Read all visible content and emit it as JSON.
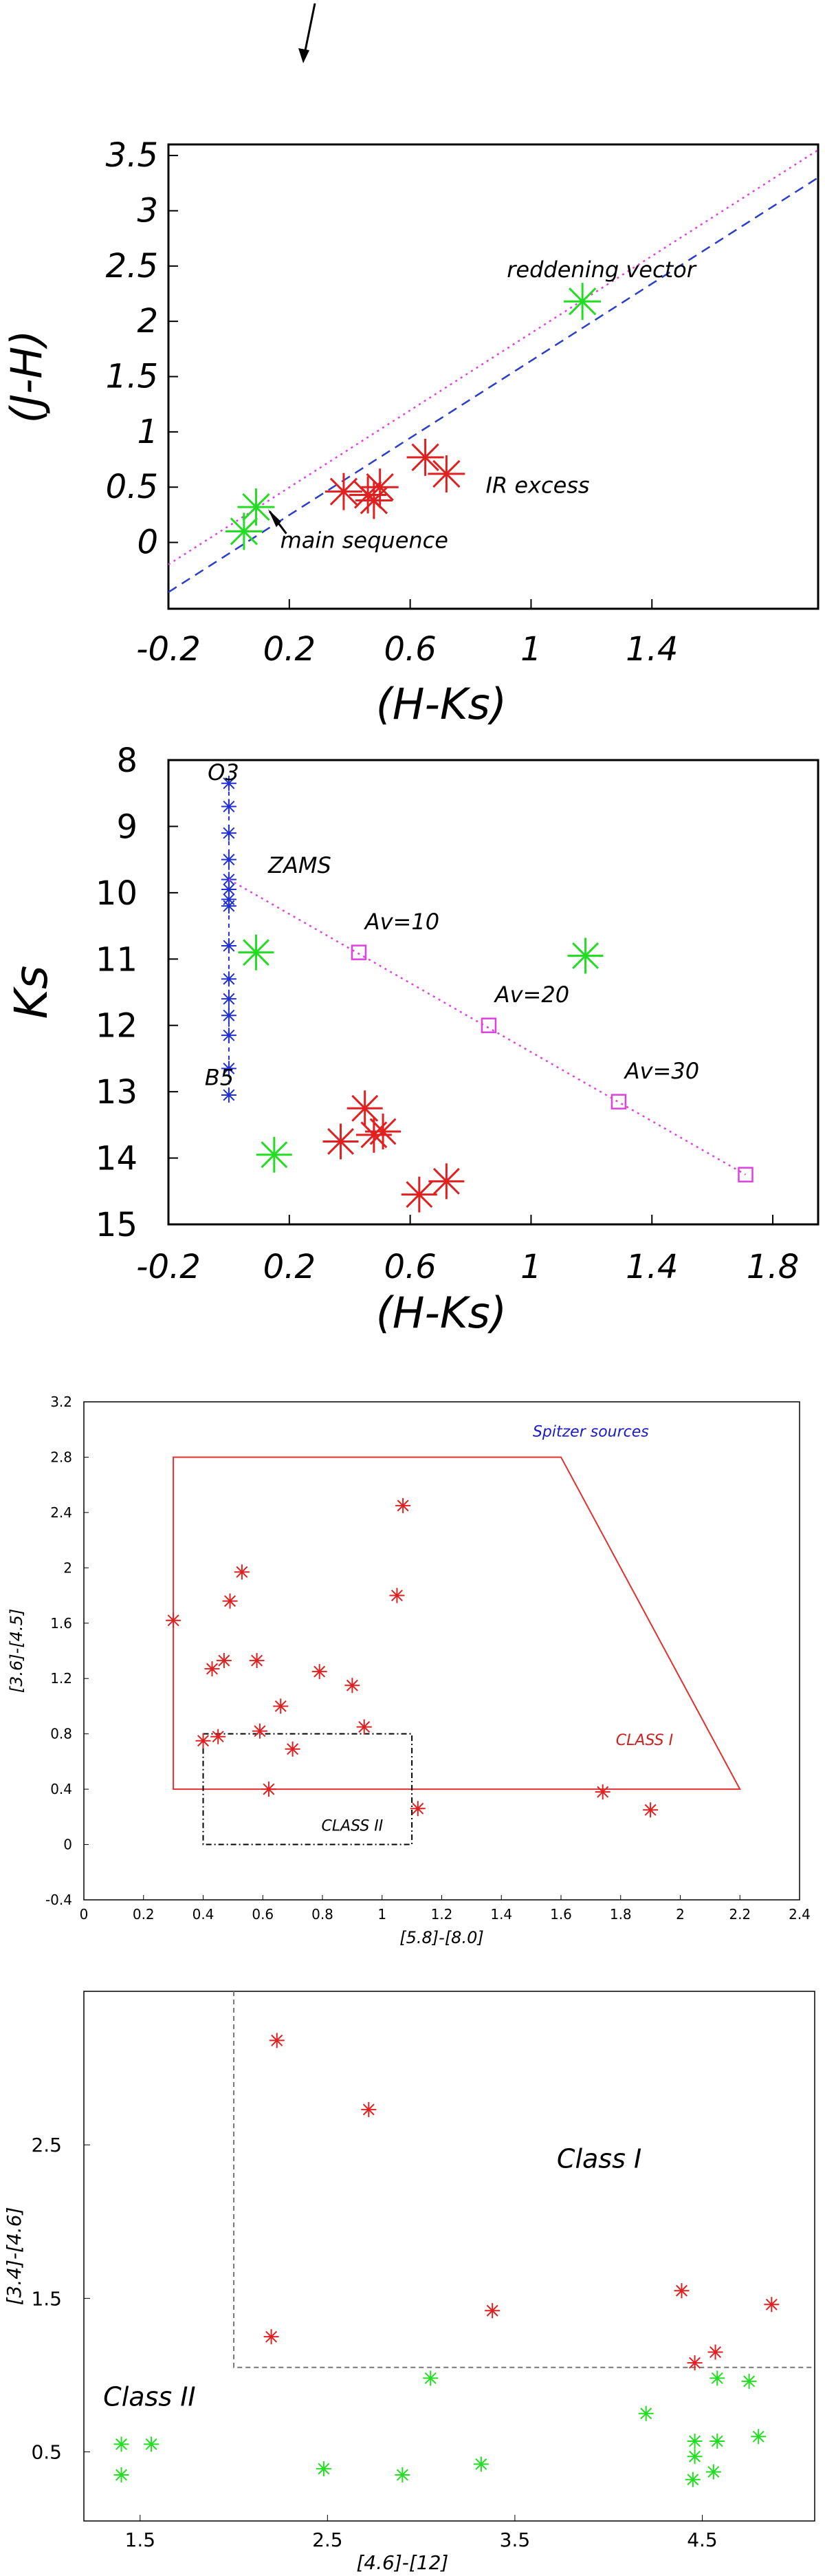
{
  "chart_data": [
    {
      "type": "scatter",
      "title": "",
      "xlabel": "(H-Ks)",
      "ylabel": "(J-H)",
      "xlim": [
        -0.2,
        1.95
      ],
      "ylim": [
        -0.6,
        3.6
      ],
      "xticks": [
        -0.2,
        0.2,
        0.6,
        1,
        1.4
      ],
      "yticks": [
        0,
        0.5,
        1,
        1.5,
        2,
        2.5,
        3,
        3.5
      ],
      "grid": false,
      "lines": [
        {
          "style": "dotted",
          "color": "#e040e0",
          "points": [
            [
              -0.2,
              -0.2
            ],
            [
              1.95,
              3.55
            ]
          ]
        },
        {
          "style": "dashed",
          "color": "#2a3fc9",
          "points": [
            [
              -0.2,
              -0.45
            ],
            [
              1.95,
              3.3
            ]
          ]
        }
      ],
      "series": [
        {
          "color": "#22dd22",
          "points": [
            [
              0.05,
              0.1
            ],
            [
              0.09,
              0.32
            ],
            [
              1.17,
              2.18
            ]
          ]
        },
        {
          "color": "#e02020",
          "points": [
            [
              0.38,
              0.46
            ],
            [
              0.46,
              0.43
            ],
            [
              0.48,
              0.38
            ],
            [
              0.5,
              0.5
            ],
            [
              0.65,
              0.77
            ],
            [
              0.72,
              0.62
            ]
          ]
        }
      ],
      "annotations": [
        {
          "text": "reddening vector",
          "x": 0.92,
          "y": 2.4
        },
        {
          "text": "IR excess",
          "x": 0.85,
          "y": 0.45
        },
        {
          "text": "main sequence",
          "x": 0.17,
          "y": -0.05
        }
      ]
    },
    {
      "type": "scatter",
      "title": "",
      "xlabel": "(H-Ks)",
      "ylabel": "Ks",
      "xlim": [
        -0.2,
        1.95
      ],
      "ylim": [
        15,
        8
      ],
      "xticks": [
        -0.2,
        0.2,
        0.6,
        1,
        1.4,
        1.8
      ],
      "yticks": [
        8,
        9,
        10,
        11,
        12,
        13,
        14,
        15
      ],
      "grid": false,
      "zams": {
        "color": "#2030d0",
        "x": 0.0,
        "ks": [
          8.35,
          8.7,
          9.1,
          9.5,
          9.8,
          9.95,
          10.1,
          10.2,
          10.8,
          11.3,
          11.6,
          11.85,
          12.15,
          12.65,
          13.05
        ]
      },
      "reddening_line": {
        "style": "dotted",
        "color": "#e040e0",
        "points": [
          [
            0.0,
            9.8
          ],
          [
            1.71,
            14.25
          ]
        ],
        "markers": [
          [
            0.43,
            10.9
          ],
          [
            0.86,
            12.0
          ],
          [
            1.29,
            13.15
          ],
          [
            1.71,
            14.25
          ]
        ]
      },
      "series": [
        {
          "color": "#22dd22",
          "points": [
            [
              0.09,
              10.9
            ],
            [
              0.15,
              13.95
            ],
            [
              1.18,
              10.95
            ]
          ]
        },
        {
          "color": "#e02020",
          "points": [
            [
              0.37,
              13.75
            ],
            [
              0.45,
              13.25
            ],
            [
              0.48,
              13.65
            ],
            [
              0.51,
              13.6
            ],
            [
              0.63,
              14.55
            ],
            [
              0.72,
              14.35
            ]
          ]
        }
      ],
      "annotations": [
        {
          "text": "O3",
          "x": -0.07,
          "y": 8.3
        },
        {
          "text": "ZAMS",
          "x": 0.13,
          "y": 9.7
        },
        {
          "text": "B5",
          "x": -0.08,
          "y": 12.9
        },
        {
          "text": "Av=10",
          "x": 0.45,
          "y": 10.55
        },
        {
          "text": "Av=20",
          "x": 0.88,
          "y": 11.65
        },
        {
          "text": "Av=30",
          "x": 1.31,
          "y": 12.8
        }
      ]
    },
    {
      "type": "scatter",
      "title": "",
      "xlabel": "[5.8]-[8.0]",
      "ylabel": "[3.6]-[4.5]",
      "xlim": [
        0,
        2.4
      ],
      "ylim": [
        -0.4,
        3.2
      ],
      "xticks": [
        "0",
        "0.2",
        "0.4",
        "0.6",
        "0.8",
        "1",
        "1.2",
        "1.4",
        "1.6",
        "1.8",
        "2",
        "2.2",
        "2.4"
      ],
      "yticks": [
        "-0.4",
        "0",
        "0.4",
        "0.8",
        "1.2",
        "1.6",
        "2",
        "2.4",
        "2.8",
        "3.2"
      ],
      "grid": false,
      "class_i_region": [
        [
          0.3,
          0.4
        ],
        [
          0.3,
          2.8
        ],
        [
          1.6,
          2.8
        ],
        [
          2.2,
          0.4
        ]
      ],
      "class_ii_region": [
        [
          0.4,
          0.0
        ],
        [
          1.1,
          0.8
        ]
      ],
      "series": [
        {
          "color": "#e02020",
          "points": [
            [
              0.3,
              1.62
            ],
            [
              0.4,
              0.75
            ],
            [
              0.43,
              1.27
            ],
            [
              0.45,
              0.78
            ],
            [
              0.47,
              1.33
            ],
            [
              0.49,
              1.76
            ],
            [
              0.53,
              1.97
            ],
            [
              0.58,
              1.33
            ],
            [
              0.59,
              0.82
            ],
            [
              0.62,
              0.4
            ],
            [
              0.66,
              1.0
            ],
            [
              0.7,
              0.69
            ],
            [
              0.79,
              1.25
            ],
            [
              0.9,
              1.15
            ],
            [
              0.94,
              0.85
            ],
            [
              1.05,
              1.8
            ],
            [
              1.07,
              2.45
            ],
            [
              1.12,
              0.26
            ],
            [
              1.74,
              0.38
            ],
            [
              1.9,
              0.25
            ]
          ]
        }
      ],
      "annotations": [
        {
          "text": "Spitzer sources",
          "x": 1.7,
          "y": 2.95,
          "color": "#1a1ad0"
        },
        {
          "text": "CLASS I",
          "x": 1.88,
          "y": 0.72,
          "color": "#d02020"
        },
        {
          "text": "CLASS II",
          "x": 0.9,
          "y": 0.1,
          "color": "#000000"
        }
      ]
    },
    {
      "type": "scatter",
      "title": "",
      "xlabel": "[4.6]-[12]",
      "ylabel": "[3.4]-[4.6]",
      "xlim": [
        1.2,
        5.1
      ],
      "ylim": [
        0.05,
        3.5
      ],
      "xticks": [
        "1.5",
        "2.5",
        "3.5",
        "4.5"
      ],
      "yticks": [
        "0.5",
        "1.5",
        "2.5"
      ],
      "grid": false,
      "boundary": [
        [
          2.0,
          3.5
        ],
        [
          2.0,
          1.05
        ],
        [
          5.1,
          1.05
        ]
      ],
      "series": [
        {
          "color": "#e02020",
          "points": [
            [
              2.23,
              3.18
            ],
            [
              2.2,
              1.25
            ],
            [
              2.72,
              2.73
            ],
            [
              3.38,
              1.42
            ],
            [
              4.39,
              1.55
            ],
            [
              4.46,
              1.08
            ],
            [
              4.57,
              1.15
            ],
            [
              4.87,
              1.46
            ]
          ]
        },
        {
          "color": "#22dd22",
          "points": [
            [
              1.4,
              0.55
            ],
            [
              1.4,
              0.35
            ],
            [
              1.56,
              0.55
            ],
            [
              2.48,
              0.39
            ],
            [
              2.9,
              0.35
            ],
            [
              3.05,
              0.98
            ],
            [
              3.32,
              0.42
            ],
            [
              4.2,
              0.75
            ],
            [
              4.46,
              0.57
            ],
            [
              4.46,
              0.47
            ],
            [
              4.45,
              0.32
            ],
            [
              4.56,
              0.37
            ],
            [
              4.58,
              0.57
            ],
            [
              4.58,
              0.98
            ],
            [
              4.75,
              0.96
            ],
            [
              4.8,
              0.6
            ]
          ]
        }
      ],
      "annotations": [
        {
          "text": "Class I",
          "x": 3.95,
          "y": 2.35
        },
        {
          "text": "Class II",
          "x": 1.55,
          "y": 0.8
        }
      ]
    }
  ]
}
